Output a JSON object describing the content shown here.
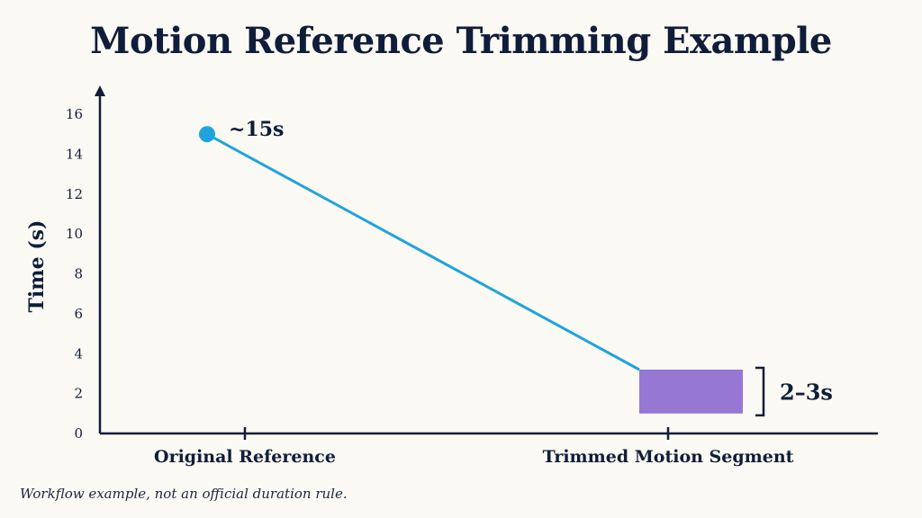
{
  "chart_data": {
    "type": "line",
    "title": "Motion Reference Trimming Example",
    "ylabel": "Time (s)",
    "xlabel": "",
    "categories": [
      "Original Reference",
      "Trimmed Motion Segment"
    ],
    "ylim": [
      0,
      16
    ],
    "yticks": [
      0,
      2,
      4,
      6,
      8,
      10,
      12,
      14,
      16
    ],
    "grid": false,
    "points": [
      {
        "category": "Original Reference",
        "value": 15,
        "label": "~15s"
      },
      {
        "category": "Trimmed Motion Segment",
        "range": [
          1,
          3.2
        ],
        "label": "2–3s"
      }
    ],
    "colors": {
      "line": "#1fa3dc",
      "point": "#1fa3dc",
      "segment": "#9677d4",
      "axis": "#0f1d3a"
    }
  },
  "footnote": "Workflow example, not an official duration rule."
}
